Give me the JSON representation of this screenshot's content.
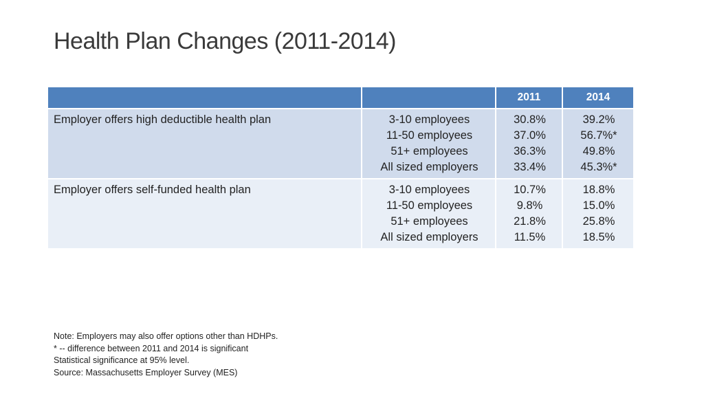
{
  "title": "Health Plan Changes (2011-2014)",
  "table": {
    "headers": [
      "",
      "",
      "2011",
      "2014"
    ],
    "rows": [
      {
        "measure": "Employer offers high deductible health plan",
        "groups": [
          "3-10 employees",
          "11-50 employees",
          "51+ employees",
          "All sized employers"
        ],
        "values_2011": [
          "30.8%",
          "37.0%",
          "36.3%",
          "33.4%"
        ],
        "values_2014": [
          "39.2%",
          "56.7%*",
          "49.8%",
          "45.3%*"
        ]
      },
      {
        "measure": "Employer offers self-funded health plan",
        "groups": [
          "3-10 employees",
          "11-50 employees",
          "51+ employees",
          "All sized employers"
        ],
        "values_2011": [
          "10.7%",
          "9.8%",
          "21.8%",
          "11.5%"
        ],
        "values_2014": [
          "18.8%",
          "15.0%",
          "25.8%",
          "18.5%"
        ]
      }
    ]
  },
  "notes": [
    "Note: Employers may also offer options other than HDHPs.",
    "* -- difference between 2011 and 2014 is significant",
    "Statistical significance at 95% level.",
    "Source: Massachusetts Employer Survey (MES)"
  ],
  "colors": {
    "header_fill": "#4f81bd",
    "row_band_dark": "#d0dbec",
    "row_band_light": "#e9eff7"
  }
}
